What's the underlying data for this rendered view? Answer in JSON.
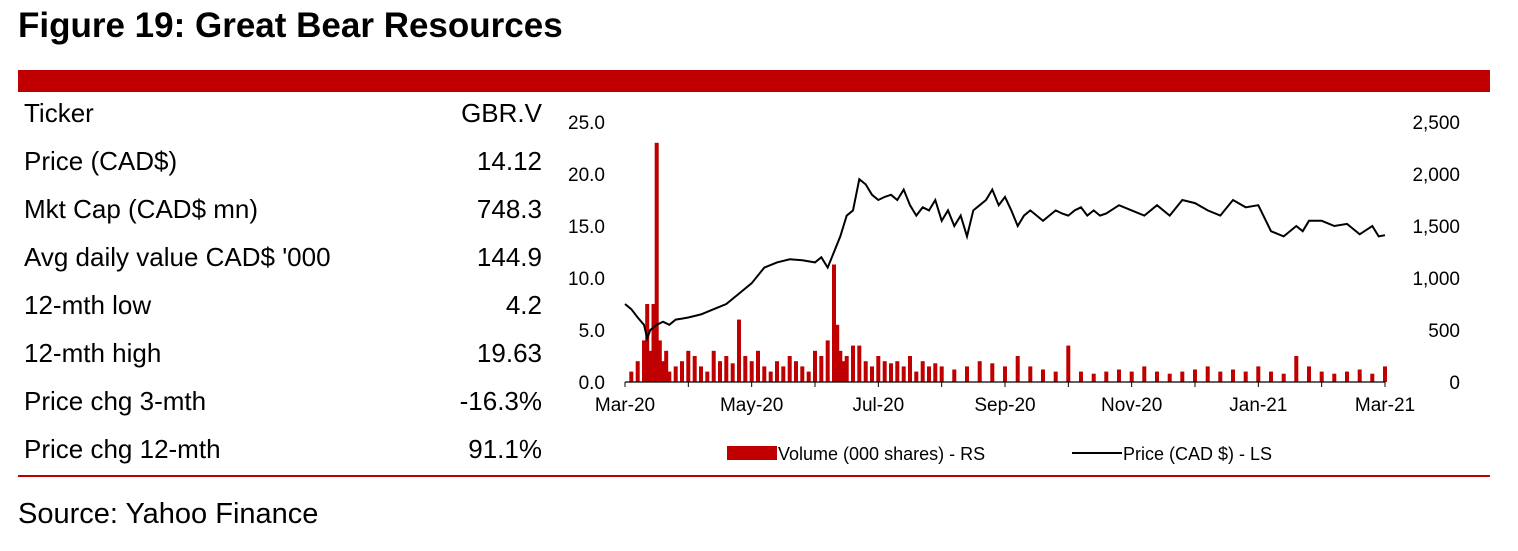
{
  "header": {
    "title": "Figure 19: Great Bear Resources"
  },
  "metrics": [
    {
      "label": "Ticker",
      "value": "GBR.V"
    },
    {
      "label": "Price (CAD$)",
      "value": "14.12"
    },
    {
      "label": "Mkt Cap (CAD$ mn)",
      "value": "748.3"
    },
    {
      "label": "Avg daily value CAD$ '000",
      "value": "144.9"
    },
    {
      "label": "12-mth low",
      "value": "4.2"
    },
    {
      "label": "12-mth high",
      "value": "19.63"
    },
    {
      "label": "Price chg 3-mth",
      "value": "-16.3%"
    },
    {
      "label": "Price chg 12-mth",
      "value": "91.1%"
    }
  ],
  "footer": {
    "source": "Source: Yahoo Finance"
  },
  "colors": {
    "brand_red": "#C00000",
    "price_line": "#000000"
  },
  "chart_data": {
    "type": "bar+line",
    "x_tick_labels": [
      "Mar-20",
      "May-20",
      "Jul-20",
      "Sep-20",
      "Nov-20",
      "Jan-21",
      "Mar-21"
    ],
    "x_tick_months": [
      0,
      2,
      4,
      6,
      8,
      10,
      12
    ],
    "left_axis": {
      "label": "Price (CAD $)",
      "ylim": [
        0,
        25
      ],
      "ticks": [
        "0.0",
        "5.0",
        "10.0",
        "15.0",
        "20.0",
        "25.0"
      ]
    },
    "right_axis": {
      "label": "Volume (000 shares)",
      "ylim": [
        0,
        2500
      ],
      "ticks": [
        "0",
        "500",
        "1,000",
        "1,500",
        "2,000",
        "2,500"
      ]
    },
    "legend": [
      {
        "name": "Volume (000 shares) - RS",
        "type": "bar"
      },
      {
        "name": "Price (CAD $) - LS",
        "type": "line"
      }
    ],
    "price_series": {
      "name": "Price (CAD $) - LS",
      "month": [
        0,
        0.1,
        0.2,
        0.3,
        0.35,
        0.4,
        0.5,
        0.6,
        0.7,
        0.8,
        0.9,
        1.0,
        1.2,
        1.4,
        1.6,
        1.8,
        2.0,
        2.2,
        2.4,
        2.6,
        2.8,
        3.0,
        3.1,
        3.2,
        3.3,
        3.4,
        3.5,
        3.6,
        3.7,
        3.8,
        3.9,
        4.0,
        4.1,
        4.2,
        4.3,
        4.4,
        4.5,
        4.6,
        4.7,
        4.8,
        4.9,
        5.0,
        5.1,
        5.2,
        5.3,
        5.4,
        5.5,
        5.6,
        5.7,
        5.8,
        5.9,
        6.0,
        6.1,
        6.2,
        6.3,
        6.4,
        6.5,
        6.6,
        6.7,
        6.8,
        6.9,
        7.0,
        7.1,
        7.2,
        7.3,
        7.4,
        7.5,
        7.6,
        7.8,
        8.0,
        8.2,
        8.4,
        8.6,
        8.8,
        9.0,
        9.2,
        9.4,
        9.6,
        9.8,
        10.0,
        10.2,
        10.4,
        10.6,
        10.7,
        10.8,
        11.0,
        11.2,
        11.4,
        11.6,
        11.8,
        11.9,
        12.0
      ],
      "values": [
        7.5,
        7.0,
        6.2,
        5.5,
        4.2,
        5.0,
        5.5,
        5.8,
        5.5,
        6.0,
        6.1,
        6.2,
        6.5,
        7.0,
        7.5,
        8.5,
        9.5,
        11.0,
        11.5,
        11.8,
        11.7,
        11.5,
        12.0,
        11.0,
        12.5,
        14.0,
        16.0,
        16.5,
        19.5,
        19.0,
        18.0,
        17.5,
        17.8,
        18.0,
        17.5,
        18.5,
        17.0,
        16.0,
        16.8,
        16.5,
        17.5,
        15.5,
        16.5,
        15.0,
        16.0,
        14.0,
        16.5,
        17.0,
        17.5,
        18.5,
        17.0,
        17.8,
        16.5,
        15.0,
        16.0,
        16.5,
        16.0,
        15.5,
        16.0,
        16.5,
        16.2,
        16.0,
        16.5,
        16.8,
        16.0,
        16.5,
        16.0,
        16.2,
        17.0,
        16.5,
        16.0,
        17.0,
        16.0,
        17.5,
        17.2,
        16.5,
        16.0,
        17.5,
        16.8,
        17.0,
        14.5,
        14.0,
        15.0,
        14.5,
        15.5,
        15.5,
        15.0,
        15.2,
        14.2,
        15.0,
        14.0,
        14.12
      ]
    },
    "volume_series": {
      "name": "Volume (000 shares) - RS",
      "month": [
        0.1,
        0.2,
        0.3,
        0.35,
        0.4,
        0.45,
        0.5,
        0.55,
        0.6,
        0.65,
        0.7,
        0.8,
        0.9,
        1.0,
        1.1,
        1.2,
        1.3,
        1.4,
        1.5,
        1.6,
        1.7,
        1.8,
        1.9,
        2.0,
        2.1,
        2.2,
        2.3,
        2.4,
        2.5,
        2.6,
        2.7,
        2.8,
        2.9,
        3.0,
        3.1,
        3.2,
        3.3,
        3.35,
        3.4,
        3.45,
        3.5,
        3.6,
        3.7,
        3.8,
        3.9,
        4.0,
        4.1,
        4.2,
        4.3,
        4.4,
        4.5,
        4.6,
        4.7,
        4.8,
        4.9,
        5.0,
        5.2,
        5.4,
        5.6,
        5.8,
        6.0,
        6.2,
        6.4,
        6.6,
        6.8,
        7.0,
        7.2,
        7.4,
        7.6,
        7.8,
        8.0,
        8.2,
        8.4,
        8.6,
        8.8,
        9.0,
        9.2,
        9.4,
        9.6,
        9.8,
        10.0,
        10.2,
        10.4,
        10.6,
        10.8,
        11.0,
        11.2,
        11.4,
        11.6,
        11.8,
        12.0
      ],
      "values": [
        100,
        200,
        400,
        750,
        300,
        750,
        2300,
        400,
        200,
        300,
        100,
        150,
        200,
        300,
        250,
        150,
        100,
        300,
        200,
        250,
        180,
        600,
        250,
        200,
        300,
        150,
        100,
        200,
        150,
        250,
        200,
        150,
        100,
        300,
        250,
        400,
        1130,
        550,
        300,
        200,
        250,
        350,
        350,
        200,
        150,
        250,
        200,
        180,
        200,
        150,
        250,
        100,
        200,
        150,
        180,
        150,
        120,
        150,
        200,
        180,
        150,
        250,
        150,
        120,
        100,
        350,
        100,
        80,
        100,
        120,
        100,
        150,
        100,
        80,
        100,
        120,
        150,
        100,
        120,
        100,
        150,
        100,
        80,
        250,
        150,
        100,
        80,
        100,
        120,
        80,
        150
      ]
    }
  }
}
